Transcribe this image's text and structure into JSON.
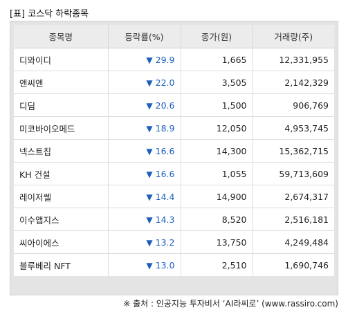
{
  "title": "[표] 코스닥 하락종목",
  "table": {
    "headers": [
      "종목명",
      "등락률(%)",
      "종가(원)",
      "거래량(주)"
    ],
    "arrow_symbol": "▼",
    "rate_color": "#1d5fbf",
    "rows": [
      {
        "name": "디와이디",
        "rate": "29.9",
        "price": "1,665",
        "volume": "12,331,955"
      },
      {
        "name": "앤씨앤",
        "rate": "22.0",
        "price": "3,505",
        "volume": "2,142,329"
      },
      {
        "name": "디딤",
        "rate": "20.6",
        "price": "1,500",
        "volume": "906,769"
      },
      {
        "name": "미코바이오메드",
        "rate": "18.9",
        "price": "12,050",
        "volume": "4,953,745"
      },
      {
        "name": "넥스트칩",
        "rate": "16.6",
        "price": "14,300",
        "volume": "15,362,715"
      },
      {
        "name": "KH 건설",
        "rate": "16.6",
        "price": "1,055",
        "volume": "59,713,609"
      },
      {
        "name": "레이저쎌",
        "rate": "14.4",
        "price": "14,900",
        "volume": "2,674,317"
      },
      {
        "name": "이수앱지스",
        "rate": "14.3",
        "price": "8,520",
        "volume": "2,516,181"
      },
      {
        "name": "씨아이에스",
        "rate": "13.2",
        "price": "13,750",
        "volume": "4,249,484"
      },
      {
        "name": "블루베리 NFT",
        "rate": "13.0",
        "price": "2,510",
        "volume": "1,690,746"
      }
    ]
  },
  "source": "※ 출처 : 인공지능 투자비서 ‘AI라씨로’ (www.rassiro.com)"
}
